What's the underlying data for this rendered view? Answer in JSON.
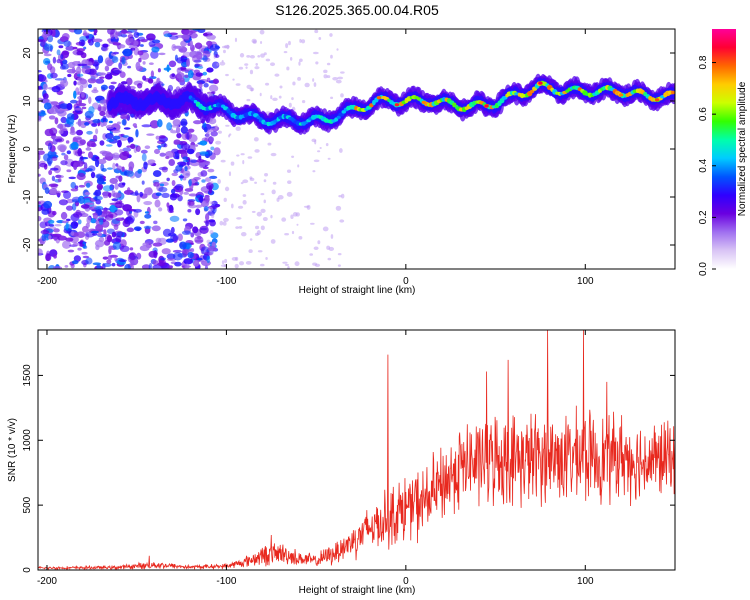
{
  "figure": {
    "title": "S126.2025.365.00.04.R05"
  },
  "chart_data": [
    {
      "type": "heatmap",
      "title": "S126.2025.365.00.04.R05",
      "xlabel": "Height of straight line (km)",
      "ylabel": "Frequency (Hz)",
      "xlim": [
        -205,
        150
      ],
      "ylim": [
        -25,
        25
      ],
      "xticks": [
        -200,
        -100,
        0,
        100
      ],
      "yticks": [
        -20,
        -10,
        0,
        10,
        20
      ],
      "colorbar": {
        "label": "Normalized spectral amplitude",
        "range": [
          0.0,
          0.93
        ],
        "ticks": [
          0.0,
          0.2,
          0.4,
          0.6,
          0.8
        ],
        "colormap": [
          "#ffffff",
          "#d9c4f5",
          "#a070f0",
          "#6a00e0",
          "#2f00ff",
          "#0055ff",
          "#00ccff",
          "#00ffaa",
          "#33ff00",
          "#ccff00",
          "#ffcc00",
          "#ff6600",
          "#ff0033",
          "#ff0099"
        ]
      },
      "ridge": {
        "description_x_km": [
          -160,
          -140,
          -120,
          -100,
          -80,
          -60,
          -45,
          -30,
          -15,
          0,
          15,
          30,
          45,
          60,
          75,
          90,
          105,
          120,
          135,
          150
        ],
        "center_freq_hz": [
          10,
          10,
          10,
          8,
          6,
          6,
          6,
          8,
          10,
          10,
          10,
          9,
          9,
          11,
          13,
          12,
          12,
          12,
          11,
          11
        ]
      }
    },
    {
      "type": "line",
      "xlabel": "Height of straight line (km)",
      "ylabel": "SNR (10 * v/v)",
      "xlim": [
        -205,
        150
      ],
      "ylim": [
        0,
        1850
      ],
      "xticks": [
        -200,
        -100,
        0,
        100
      ],
      "yticks": [
        0,
        500,
        1000,
        1500
      ],
      "color": "#e8281e",
      "series_envelope": {
        "x_km": [
          -205,
          -160,
          -140,
          -120,
          -100,
          -90,
          -80,
          -70,
          -60,
          -50,
          -40,
          -30,
          -20,
          -10,
          0,
          10,
          20,
          30,
          40,
          50,
          60,
          70,
          80,
          90,
          100,
          110,
          120,
          130,
          140,
          150
        ],
        "mean": [
          15,
          20,
          40,
          22,
          30,
          60,
          110,
          130,
          90,
          70,
          130,
          220,
          330,
          400,
          480,
          520,
          650,
          800,
          830,
          860,
          850,
          860,
          880,
          860,
          880,
          860,
          880,
          840,
          850,
          860
        ],
        "amplitude": [
          10,
          15,
          30,
          15,
          20,
          40,
          80,
          90,
          60,
          50,
          90,
          140,
          180,
          230,
          260,
          280,
          300,
          330,
          340,
          350,
          350,
          360,
          360,
          350,
          350,
          340,
          330,
          310,
          300,
          300
        ]
      },
      "spikes": [
        {
          "x": -143,
          "y": 110
        },
        {
          "x": -75,
          "y": 270
        },
        {
          "x": -10,
          "y": 1660
        },
        {
          "x": 45,
          "y": 1530
        },
        {
          "x": 57,
          "y": 1620
        },
        {
          "x": 79,
          "y": 1850
        },
        {
          "x": 99,
          "y": 1850
        },
        {
          "x": 112,
          "y": 1450
        }
      ]
    }
  ]
}
